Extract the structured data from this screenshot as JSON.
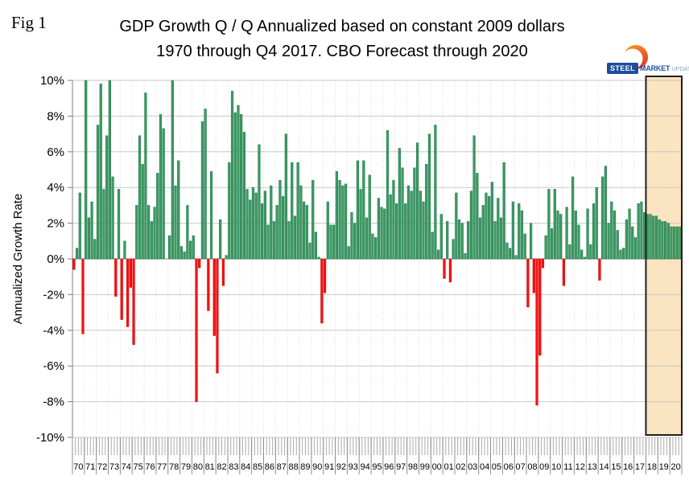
{
  "figure": {
    "fig_label": "Fig 1",
    "title_line1": "GDP Growth Q / Q Annualized based on constant 2009 dollars",
    "title_line2": "1970 through Q4 2017. CBO Forecast through 2020"
  },
  "logo": {
    "steel": "STEEL",
    "market": "MARKET",
    "update": "UPDATE",
    "brand_blue": "#1d4e9e",
    "accent_orange_top": "#f9a01b",
    "accent_orange_bottom": "#e03c31"
  },
  "chart_data": {
    "type": "bar",
    "title": "GDP Growth Q / Q Annualized based on constant 2009 dollars 1970 through Q4 2017. CBO Forecast through 2020",
    "xlabel": "",
    "ylabel": "Annualized Growth Rate",
    "unit": "%",
    "ylim": [
      -10,
      10
    ],
    "ytick_step": 2,
    "ytick_labels": [
      "10%",
      "8%",
      "6%",
      "4%",
      "2%",
      "0%",
      "-2%",
      "-4%",
      "-6%",
      "-8%",
      "-10%"
    ],
    "grid": "horizontal solid every 2%, vertical dotted every year",
    "legend": "none",
    "clip_to_ylim": true,
    "forecast_from_year_label": "18",
    "forecast_note": "CBO Forecast highlighted band 2018-2020",
    "colors": {
      "positive_bar": "#3c9a64",
      "positive_bar_edge": "#1f7a47",
      "negative_bar": "#fb1010",
      "negative_bar_edge": "#ce0000",
      "forecast_band_fill": "#fbe4c0",
      "forecast_band_border": "#1f1f1f",
      "gridline": "#c8c8c8",
      "zero_line": "#8a8a8a",
      "axis": "#7f7f7f"
    },
    "years": [
      {
        "label": "70",
        "q": [
          -0.6,
          0.6,
          3.7,
          -4.2
        ]
      },
      {
        "label": "71",
        "q": [
          11.3,
          2.3,
          3.2,
          1.1
        ]
      },
      {
        "label": "72",
        "q": [
          7.5,
          9.8,
          3.9,
          6.9
        ]
      },
      {
        "label": "73",
        "q": [
          10.3,
          4.6,
          -2.1,
          3.9
        ]
      },
      {
        "label": "74",
        "q": [
          -3.4,
          1.0,
          -3.8,
          -1.6
        ]
      },
      {
        "label": "75",
        "q": [
          -4.8,
          3.0,
          6.9,
          5.3
        ]
      },
      {
        "label": "76",
        "q": [
          9.3,
          3.0,
          2.1,
          2.9
        ]
      },
      {
        "label": "77",
        "q": [
          4.8,
          8.1,
          7.3,
          0.0
        ]
      },
      {
        "label": "78",
        "q": [
          1.3,
          16.4,
          4.1,
          5.5
        ]
      },
      {
        "label": "79",
        "q": [
          0.7,
          0.4,
          3.0,
          1.0
        ]
      },
      {
        "label": "80",
        "q": [
          1.3,
          -8.0,
          -0.5,
          7.7
        ]
      },
      {
        "label": "81",
        "q": [
          8.4,
          -2.9,
          4.9,
          -4.3
        ]
      },
      {
        "label": "82",
        "q": [
          -6.4,
          2.2,
          -1.5,
          0.2
        ]
      },
      {
        "label": "83",
        "q": [
          5.4,
          9.4,
          8.2,
          8.6
        ]
      },
      {
        "label": "84",
        "q": [
          8.1,
          7.1,
          3.9,
          3.3
        ]
      },
      {
        "label": "85",
        "q": [
          4.0,
          3.7,
          6.4,
          3.1
        ]
      },
      {
        "label": "86",
        "q": [
          3.8,
          1.9,
          4.1,
          2.1
        ]
      },
      {
        "label": "87",
        "q": [
          3.0,
          4.4,
          3.5,
          7.0
        ]
      },
      {
        "label": "88",
        "q": [
          2.1,
          5.4,
          2.4,
          5.4
        ]
      },
      {
        "label": "89",
        "q": [
          4.1,
          3.2,
          3.0,
          0.9
        ]
      },
      {
        "label": "90",
        "q": [
          4.4,
          1.5,
          0.1,
          -3.6
        ]
      },
      {
        "label": "91",
        "q": [
          -1.9,
          3.2,
          1.9,
          1.9
        ]
      },
      {
        "label": "92",
        "q": [
          4.9,
          4.4,
          4.1,
          4.2
        ]
      },
      {
        "label": "93",
        "q": [
          0.7,
          2.6,
          2.0,
          5.5
        ]
      },
      {
        "label": "94",
        "q": [
          3.9,
          5.5,
          2.3,
          4.7
        ]
      },
      {
        "label": "95",
        "q": [
          1.4,
          1.2,
          3.4,
          2.9
        ]
      },
      {
        "label": "96",
        "q": [
          2.8,
          7.2,
          3.6,
          4.4
        ]
      },
      {
        "label": "97",
        "q": [
          3.1,
          6.2,
          5.1,
          3.1
        ]
      },
      {
        "label": "98",
        "q": [
          4.1,
          3.8,
          5.1,
          6.5
        ]
      },
      {
        "label": "99",
        "q": [
          3.8,
          3.2,
          5.3,
          7.0
        ]
      },
      {
        "label": "00",
        "q": [
          1.5,
          7.5,
          0.5,
          2.5
        ]
      },
      {
        "label": "01",
        "q": [
          -1.1,
          2.1,
          -1.3,
          1.1
        ]
      },
      {
        "label": "02",
        "q": [
          3.7,
          2.2,
          2.0,
          0.3
        ]
      },
      {
        "label": "03",
        "q": [
          2.1,
          3.8,
          6.9,
          4.8
        ]
      },
      {
        "label": "04",
        "q": [
          2.3,
          3.0,
          3.7,
          3.5
        ]
      },
      {
        "label": "05",
        "q": [
          4.3,
          2.1,
          3.4,
          2.3
        ]
      },
      {
        "label": "06",
        "q": [
          5.4,
          0.9,
          0.6,
          3.2
        ]
      },
      {
        "label": "07",
        "q": [
          0.2,
          3.1,
          2.7,
          1.4
        ]
      },
      {
        "label": "08",
        "q": [
          -2.7,
          2.0,
          -1.9,
          -8.2
        ]
      },
      {
        "label": "09",
        "q": [
          -5.4,
          -0.5,
          1.3,
          3.9
        ]
      },
      {
        "label": "10",
        "q": [
          1.7,
          3.9,
          2.7,
          2.5
        ]
      },
      {
        "label": "11",
        "q": [
          -1.5,
          2.9,
          0.8,
          4.6
        ]
      },
      {
        "label": "12",
        "q": [
          2.7,
          1.9,
          0.5,
          0.1
        ]
      },
      {
        "label": "13",
        "q": [
          2.8,
          0.8,
          3.1,
          4.0
        ]
      },
      {
        "label": "14",
        "q": [
          -1.2,
          4.6,
          5.2,
          2.0
        ]
      },
      {
        "label": "15",
        "q": [
          3.2,
          2.7,
          1.6,
          0.5
        ]
      },
      {
        "label": "16",
        "q": [
          0.6,
          2.2,
          2.8,
          1.8
        ]
      },
      {
        "label": "17",
        "q": [
          1.2,
          3.1,
          3.2,
          2.6
        ]
      },
      {
        "label": "18",
        "q": [
          2.5,
          2.5,
          2.4,
          2.4
        ]
      },
      {
        "label": "19",
        "q": [
          2.2,
          2.1,
          2.1,
          2.0
        ]
      },
      {
        "label": "20",
        "q": [
          1.8,
          1.8,
          1.8,
          1.8
        ]
      }
    ]
  }
}
